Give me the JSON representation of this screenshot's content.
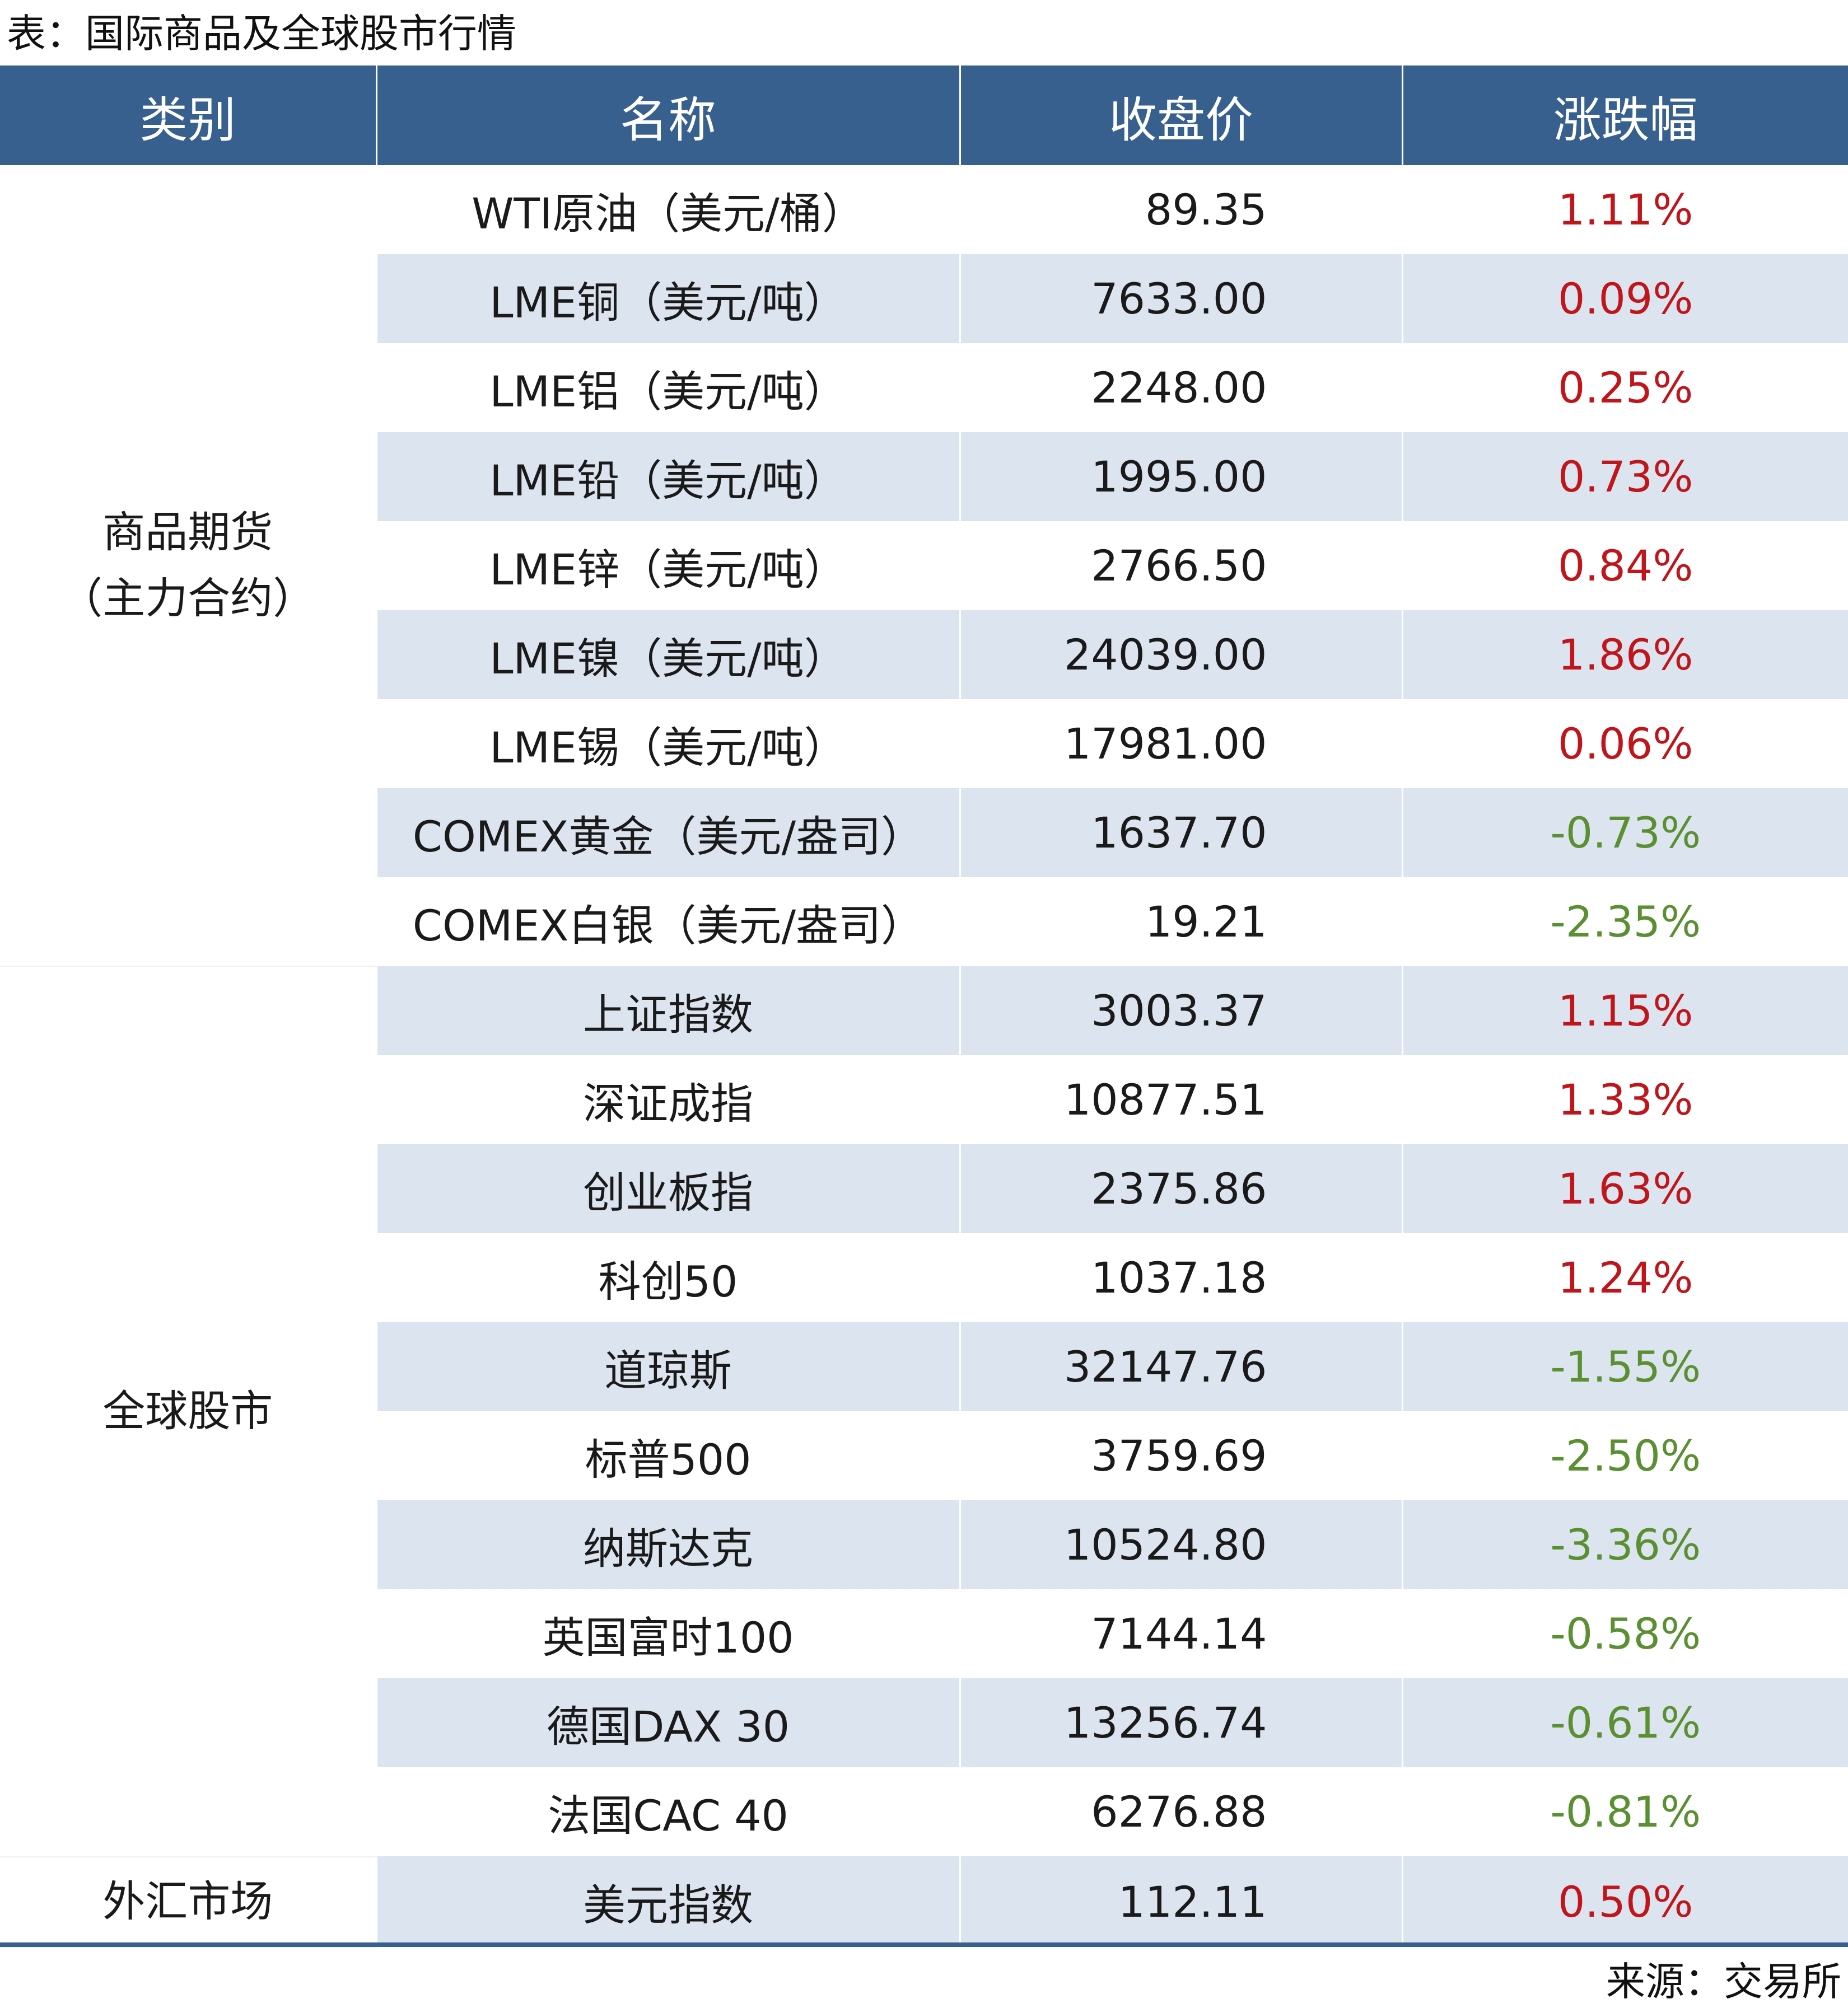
{
  "title": "表：国际商品及全球股市行情",
  "source": "来源：交易所",
  "colors": {
    "header_bg": "#37608f",
    "header_text": "#ffffff",
    "row_shade": "#dce5ef",
    "up": "#c0151b",
    "down": "#5a8f32"
  },
  "table": {
    "headers": [
      "类别",
      "名称",
      "收盘价",
      "涨跌幅"
    ],
    "groups": [
      {
        "category": "商品期货\n（主力合约）",
        "rows": [
          {
            "name": "WTI原油（美元/桶）",
            "price": "89.35",
            "change": "1.11%",
            "direction": "up"
          },
          {
            "name": "LME铜（美元/吨）",
            "price": "7633.00",
            "change": "0.09%",
            "direction": "up"
          },
          {
            "name": "LME铝（美元/吨）",
            "price": "2248.00",
            "change": "0.25%",
            "direction": "up"
          },
          {
            "name": "LME铅（美元/吨）",
            "price": "1995.00",
            "change": "0.73%",
            "direction": "up"
          },
          {
            "name": "LME锌（美元/吨）",
            "price": "2766.50",
            "change": "0.84%",
            "direction": "up"
          },
          {
            "name": "LME镍（美元/吨）",
            "price": "24039.00",
            "change": "1.86%",
            "direction": "up"
          },
          {
            "name": "LME锡（美元/吨）",
            "price": "17981.00",
            "change": "0.06%",
            "direction": "up"
          },
          {
            "name": "COMEX黄金（美元/盎司）",
            "price": "1637.70",
            "change": "-0.73%",
            "direction": "down"
          },
          {
            "name": "COMEX白银（美元/盎司）",
            "price": "19.21",
            "change": "-2.35%",
            "direction": "down"
          }
        ]
      },
      {
        "category": "全球股市",
        "rows": [
          {
            "name": "上证指数",
            "price": "3003.37",
            "change": "1.15%",
            "direction": "up"
          },
          {
            "name": "深证成指",
            "price": "10877.51",
            "change": "1.33%",
            "direction": "up"
          },
          {
            "name": "创业板指",
            "price": "2375.86",
            "change": "1.63%",
            "direction": "up"
          },
          {
            "name": "科创50",
            "price": "1037.18",
            "change": "1.24%",
            "direction": "up"
          },
          {
            "name": "道琼斯",
            "price": "32147.76",
            "change": "-1.55%",
            "direction": "down"
          },
          {
            "name": "标普500",
            "price": "3759.69",
            "change": "-2.50%",
            "direction": "down"
          },
          {
            "name": "纳斯达克",
            "price": "10524.80",
            "change": "-3.36%",
            "direction": "down"
          },
          {
            "name": "英国富时100",
            "price": "7144.14",
            "change": "-0.58%",
            "direction": "down"
          },
          {
            "name": "德国DAX 30",
            "price": "13256.74",
            "change": "-0.61%",
            "direction": "down"
          },
          {
            "name": "法国CAC 40",
            "price": "6276.88",
            "change": "-0.81%",
            "direction": "down"
          }
        ]
      },
      {
        "category": "外汇市场",
        "rows": [
          {
            "name": "美元指数",
            "price": "112.11",
            "change": "0.50%",
            "direction": "up"
          }
        ]
      }
    ]
  }
}
